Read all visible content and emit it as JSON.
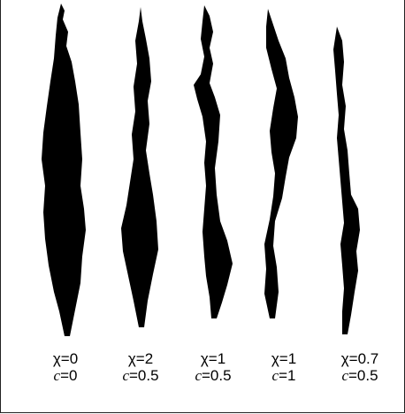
{
  "panels": [
    {
      "chi_label": "χ=0",
      "c_var": "c",
      "c_value": "=0"
    },
    {
      "chi_label": "χ=2",
      "c_var": "c",
      "c_value": "=0.5"
    },
    {
      "chi_label": "χ=1",
      "c_var": "c",
      "c_value": "=0.5"
    },
    {
      "chi_label": "χ=1",
      "c_var": "c",
      "c_value": "=1"
    },
    {
      "chi_label": "χ=0.7",
      "c_var": "c",
      "c_value": "=0.5"
    }
  ],
  "colors": {
    "blob": "#000000",
    "background": "#ffffff"
  }
}
